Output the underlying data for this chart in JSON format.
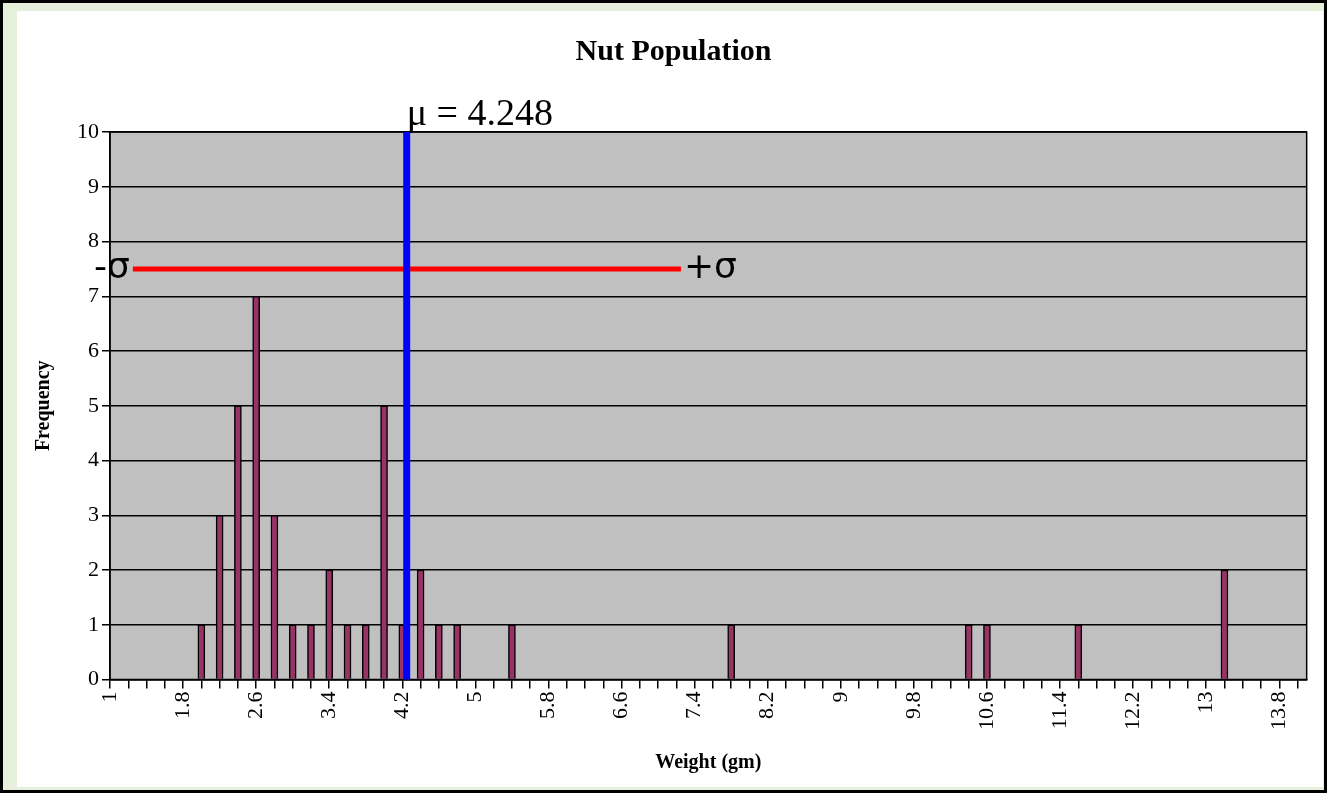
{
  "chart_data": {
    "type": "bar",
    "title": "Nut Population",
    "xlabel": "Weight (gm)",
    "ylabel": "Frequency",
    "x": [
      2.0,
      2.2,
      2.4,
      2.6,
      2.8,
      3.0,
      3.2,
      3.4,
      3.6,
      3.8,
      4.0,
      4.2,
      4.4,
      4.6,
      4.8,
      5.4,
      7.8,
      10.4,
      10.6,
      11.6,
      13.2
    ],
    "series": [
      {
        "color": "#993366",
        "values": [
          1,
          3,
          5,
          7,
          3,
          1,
          1,
          2,
          1,
          1,
          5,
          1,
          2,
          1,
          1,
          1,
          1,
          1,
          1,
          1,
          2
        ]
      },
      {
        "type": "line",
        "color": "#ff0000",
        "x": [
          1.25,
          7.25
        ],
        "values": [
          7.5,
          7.5
        ],
        "marker": "none"
      }
    ],
    "xlim": [
      1,
      14.1
    ],
    "xticks": [
      1,
      {
        "value": 1.2,
        "label": null
      },
      {
        "value": 1.4,
        "label": null
      },
      {
        "value": 1.6,
        "label": null
      },
      1.8,
      {
        "value": 2.0,
        "label": null
      },
      {
        "value": 2.2,
        "label": null
      },
      {
        "value": 2.4,
        "label": null
      },
      2.6,
      {
        "value": 2.8,
        "label": null
      },
      {
        "value": 3.0,
        "label": null
      },
      {
        "value": 3.2,
        "label": null
      },
      3.4,
      {
        "value": 3.6,
        "label": null
      },
      {
        "value": 3.8,
        "label": null
      },
      {
        "value": 4.0,
        "label": null
      },
      4.2,
      {
        "value": 4.4,
        "label": null
      },
      {
        "value": 4.6,
        "label": null
      },
      {
        "value": 4.8,
        "label": null
      },
      5,
      {
        "value": 5.2,
        "label": null
      },
      {
        "value": 5.4,
        "label": null
      },
      {
        "value": 5.6,
        "label": null
      },
      5.8,
      {
        "value": 6.0,
        "label": null
      },
      {
        "value": 6.2,
        "label": null
      },
      {
        "value": 6.4,
        "label": null
      },
      6.6,
      {
        "value": 6.8,
        "label": null
      },
      {
        "value": 7.0,
        "label": null
      },
      {
        "value": 7.2,
        "label": null
      },
      7.4,
      {
        "value": 7.6,
        "label": null
      },
      {
        "value": 7.8,
        "label": null
      },
      {
        "value": 8.0,
        "label": null
      },
      8.2,
      {
        "value": 8.4,
        "label": null
      },
      {
        "value": 8.6,
        "label": null
      },
      {
        "value": 8.8,
        "label": null
      },
      9,
      {
        "value": 9.2,
        "label": null
      },
      {
        "value": 9.4,
        "label": null
      },
      {
        "value": 9.6,
        "label": null
      },
      9.8,
      {
        "value": 10.0,
        "label": null
      },
      {
        "value": 10.2,
        "label": null
      },
      {
        "value": 10.4,
        "label": null
      },
      10.6,
      {
        "value": 10.8,
        "label": null
      },
      {
        "value": 11.0,
        "label": null
      },
      {
        "value": 11.2,
        "label": null
      },
      11.4,
      {
        "value": 11.6,
        "label": null
      },
      {
        "value": 11.8,
        "label": null
      },
      {
        "value": 12.0,
        "label": null
      },
      12.2,
      {
        "value": 12.4,
        "label": null
      },
      {
        "value": 12.6,
        "label": null
      },
      {
        "value": 12.8,
        "label": null
      },
      13,
      {
        "value": 13.2,
        "label": null
      },
      {
        "value": 13.4,
        "label": null
      },
      {
        "value": 13.6,
        "label": null
      },
      13.8,
      {
        "value": 14.0,
        "label": null
      }
    ],
    "ylim": [
      0,
      10
    ],
    "yticks": [
      0,
      1,
      2,
      3,
      4,
      5,
      6,
      7,
      8,
      9,
      10
    ],
    "grid": "y",
    "legend": false,
    "ref_lines": [
      {
        "axis": "x",
        "value": 4.248,
        "label": "μ = 4.248",
        "color": "#0000ff"
      }
    ],
    "annotations": [
      {
        "text": "-σ",
        "x": 1.25,
        "y": 7.5
      },
      {
        "text": "+σ",
        "x": 7.25,
        "y": 7.5
      }
    ]
  }
}
